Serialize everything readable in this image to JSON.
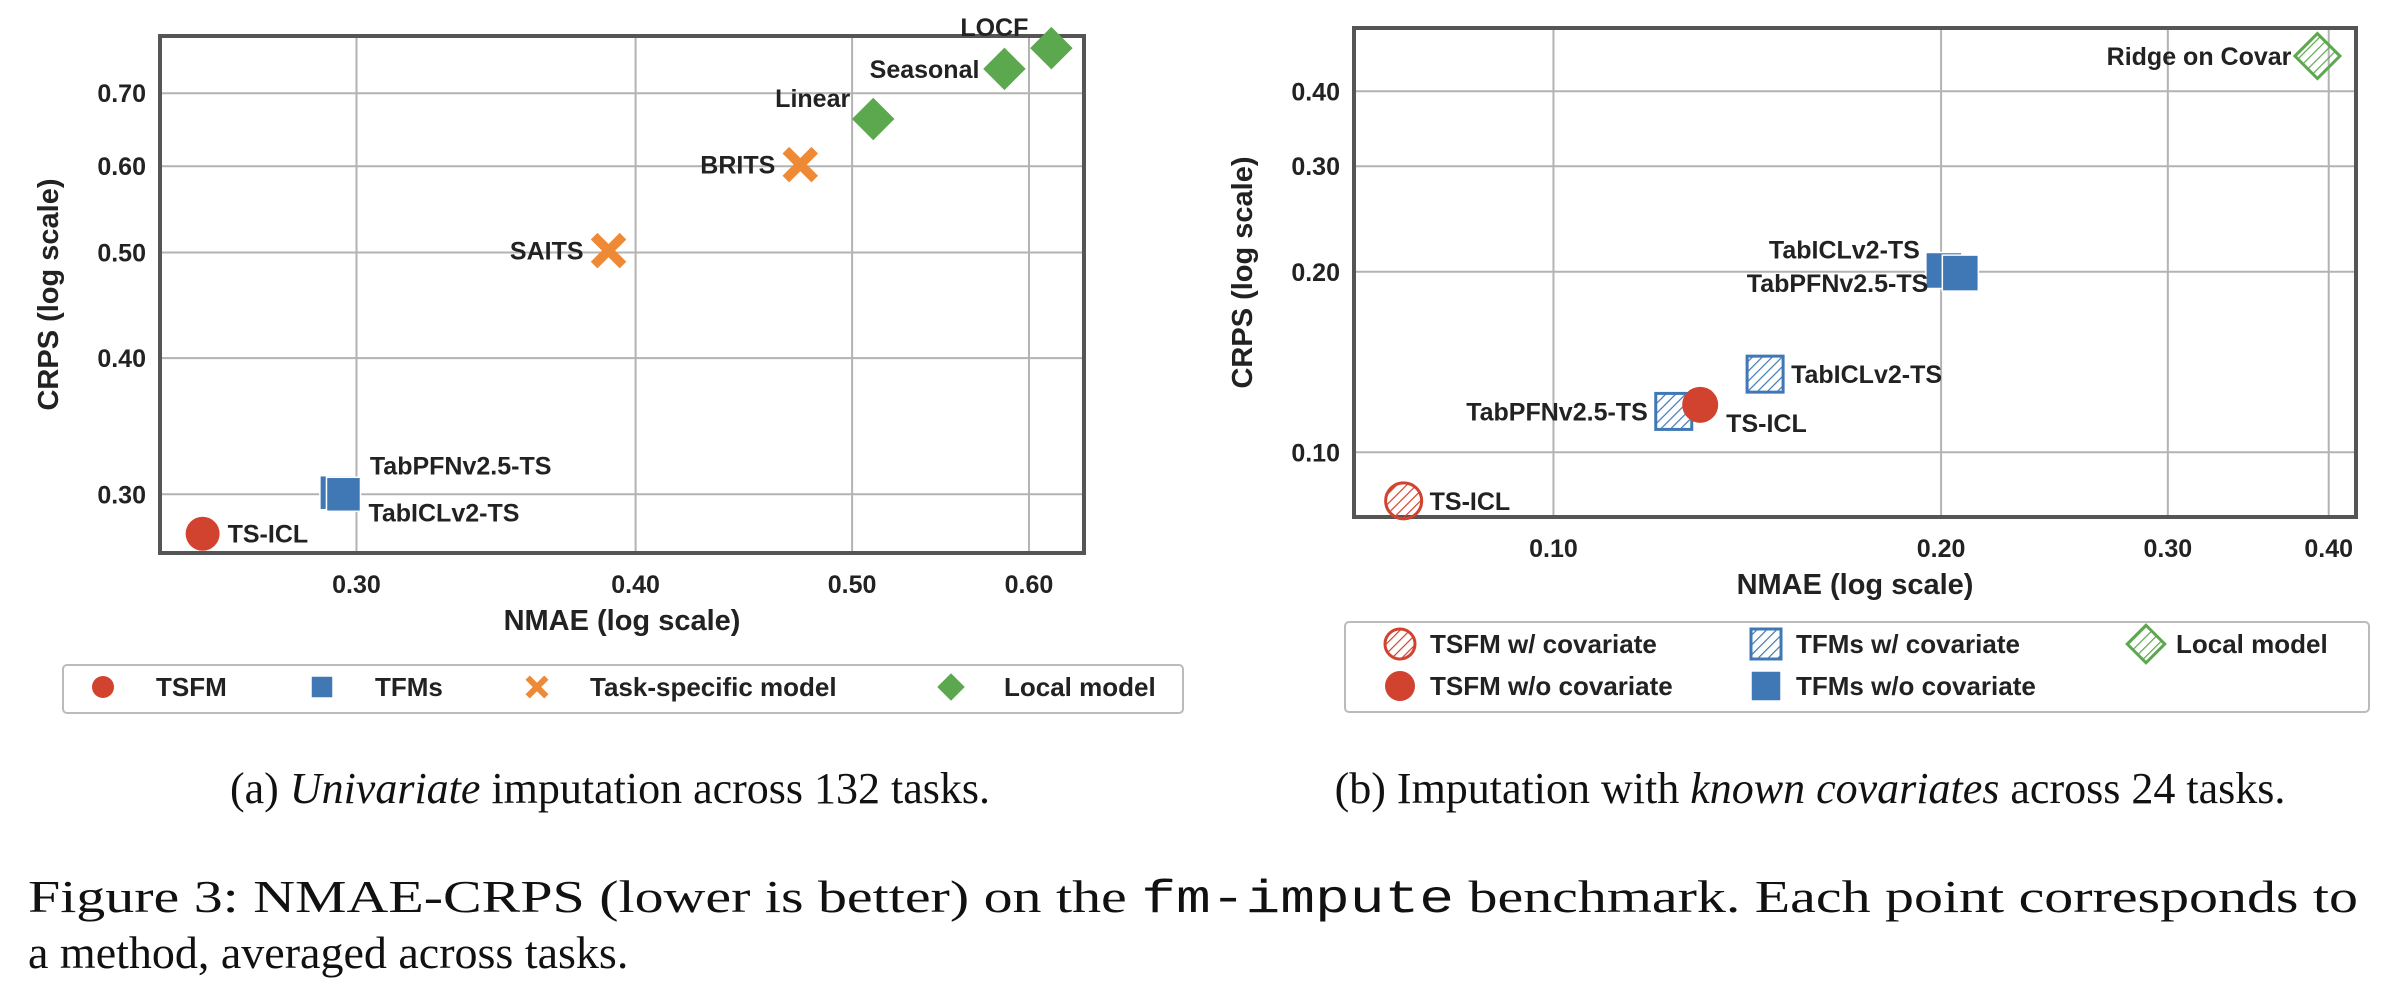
{
  "colors": {
    "tsfm": "#d1432e",
    "tfm": "#3f78b5",
    "task_specific": "#ee8a35",
    "local": "#5ca84e",
    "grid": "#b3b3b3",
    "frame": "#555555"
  },
  "chart_data": [
    {
      "type": "scatter",
      "xlabel": "NMAE (log scale)",
      "ylabel": "CRPS (log scale)",
      "xscale": "log",
      "yscale": "log",
      "xlim": [
        0.245,
        0.635
      ],
      "ylim": [
        0.265,
        0.79
      ],
      "xticks": [
        0.3,
        0.4,
        0.5,
        0.6
      ],
      "xtick_labels": [
        "0.30",
        "0.40",
        "0.50",
        "0.60"
      ],
      "yticks": [
        0.3,
        0.4,
        0.5,
        0.6,
        0.7
      ],
      "ytick_labels": [
        "0.30",
        "0.40",
        "0.50",
        "0.60",
        "0.70"
      ],
      "grid": true,
      "legend_position": "bottom",
      "legend": [
        {
          "label": "TSFM",
          "marker": "circle",
          "color": "tsfm"
        },
        {
          "label": "TFMs",
          "marker": "square",
          "color": "tfm"
        },
        {
          "label": "Task-specific model",
          "marker": "x",
          "color": "task_specific"
        },
        {
          "label": "Local model",
          "marker": "diamond",
          "color": "local"
        }
      ],
      "points": [
        {
          "label": "TS-ICL",
          "x": 0.256,
          "y": 0.276,
          "marker": "circle",
          "color": "tsfm",
          "label_side": "right"
        },
        {
          "label": "TabPFNv2.5-TS",
          "x": 0.294,
          "y": 0.301,
          "marker": "square",
          "color": "tfm",
          "label_side": "upper-right"
        },
        {
          "label": "TabICLv2-TS",
          "x": 0.296,
          "y": 0.3,
          "marker": "square",
          "color": "tfm",
          "label_side": "lower-right"
        },
        {
          "label": "SAITS",
          "x": 0.389,
          "y": 0.502,
          "marker": "x",
          "color": "task_specific",
          "label_side": "left"
        },
        {
          "label": "BRITS",
          "x": 0.474,
          "y": 0.602,
          "marker": "x",
          "color": "task_specific",
          "label_side": "left"
        },
        {
          "label": "Linear",
          "x": 0.511,
          "y": 0.663,
          "marker": "diamond",
          "color": "local",
          "label_side": "upper-left"
        },
        {
          "label": "Seasonal",
          "x": 0.585,
          "y": 0.737,
          "marker": "diamond",
          "color": "local",
          "label_side": "left"
        },
        {
          "label": "LOCF",
          "x": 0.614,
          "y": 0.77,
          "marker": "diamond",
          "color": "local",
          "label_side": "upper-left"
        }
      ]
    },
    {
      "type": "scatter",
      "xlabel": "NMAE (log scale)",
      "ylabel": "CRPS (log scale)",
      "xscale": "log",
      "yscale": "log",
      "xlim": [
        0.07,
        0.42
      ],
      "ylim": [
        0.078,
        0.51
      ],
      "xticks": [
        0.1,
        0.2,
        0.3,
        0.4
      ],
      "xtick_labels": [
        "0.10",
        "0.20",
        "0.30",
        "0.40"
      ],
      "yticks": [
        0.1,
        0.2,
        0.3,
        0.4
      ],
      "ytick_labels": [
        "0.10",
        "0.20",
        "0.30",
        "0.40"
      ],
      "grid": true,
      "legend_position": "bottom",
      "legend": [
        {
          "label": "TSFM w/ covariate",
          "marker": "circle-hatched",
          "color": "tsfm"
        },
        {
          "label": "TFMs w/ covariate",
          "marker": "square-hatched",
          "color": "tfm"
        },
        {
          "label": "Local model",
          "marker": "diamond-hatched",
          "color": "local"
        },
        {
          "label": "TSFM w/o covariate",
          "marker": "circle",
          "color": "tsfm"
        },
        {
          "label": "TFMs w/o covariate",
          "marker": "square",
          "color": "tfm"
        }
      ],
      "points": [
        {
          "label": "TS-ICL",
          "x": 0.0765,
          "y": 0.083,
          "marker": "circle-hatched",
          "color": "tsfm",
          "label_side": "right"
        },
        {
          "label": "TabPFNv2.5-TS",
          "x": 0.124,
          "y": 0.117,
          "marker": "square-hatched",
          "color": "tfm",
          "label_side": "left"
        },
        {
          "label": "TS-ICL",
          "x": 0.13,
          "y": 0.12,
          "marker": "circle",
          "color": "tsfm",
          "label_side": "lower-right"
        },
        {
          "label": "TabICLv2-TS",
          "x": 0.146,
          "y": 0.135,
          "marker": "square-hatched",
          "color": "tfm",
          "label_side": "right"
        },
        {
          "label": "TabICLv2-TS",
          "x": 0.201,
          "y": 0.201,
          "marker": "square",
          "color": "tfm",
          "label_side": "upper-left"
        },
        {
          "label": "TabPFNv2.5-TS",
          "x": 0.207,
          "y": 0.199,
          "marker": "square",
          "color": "tfm",
          "label_side": "lower-left"
        },
        {
          "label": "Ridge on Covar",
          "x": 0.392,
          "y": 0.458,
          "marker": "diamond-hatched",
          "color": "local",
          "label_side": "left"
        }
      ]
    }
  ],
  "captions": {
    "a": {
      "prefix": "(a) ",
      "emph": "Univariate",
      "suffix": " imputation across 132 tasks."
    },
    "b": {
      "prefix": "(b) Imputation with ",
      "emph": "known covariates",
      "suffix": " across 24 tasks."
    }
  },
  "figure_caption": {
    "line1_before": "Figure 3: NMAE-CRPS (lower is better) on the ",
    "line1_code": "fm-impute",
    "line1_after": " benchmark. Each point corresponds to",
    "line2": "a method, averaged across tasks."
  }
}
